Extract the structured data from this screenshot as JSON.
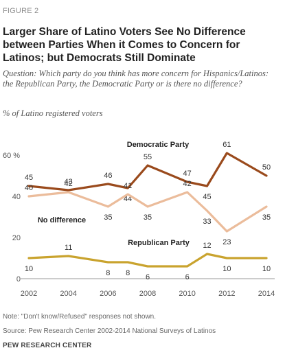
{
  "figure_label": "FIGURE 2",
  "title": "Larger Share of Latino Voters See No Difference between Parties When it Comes to Concern for Latinos; but Democrats Still Dominate",
  "question": "Question: Which party do you think has more concern for Hispanics/Latinos: the Republican Party, the Democratic Party or is there no difference?",
  "units": "% of Latino registered voters",
  "note": "Note: \"Don't know/Refused\" responses not shown.",
  "source": "Source: Pew Research Center 2002-2014 National Surveys of Latinos",
  "brand": "PEW RESEARCH CENTER",
  "chart_data": {
    "type": "line",
    "x": [
      2002,
      2004,
      2006,
      2007,
      2008,
      2010,
      2011,
      2012,
      2014
    ],
    "xticks": [
      "2002",
      "2004",
      "2006",
      "2008",
      "2010",
      "2012",
      "2014"
    ],
    "yticks": [
      "0",
      "20",
      "40",
      "60 %"
    ],
    "ylim": [
      0,
      60
    ],
    "xlim": [
      2002,
      2014
    ],
    "grid": false,
    "series": [
      {
        "name": "Democratic Party",
        "color": "#9a4a1c",
        "values": [
          45,
          43,
          46,
          44,
          55,
          47,
          45,
          61,
          50
        ],
        "labels": [
          "45",
          "43",
          "46",
          "44",
          "55",
          "47",
          "45",
          "61",
          "50"
        ]
      },
      {
        "name": "No difference",
        "color": "#ebbc9b",
        "values": [
          40,
          42,
          35,
          41,
          35,
          42,
          33,
          23,
          35
        ],
        "labels": [
          "40",
          "42",
          "35",
          "41",
          "35",
          "42",
          "33",
          "23",
          "35"
        ]
      },
      {
        "name": "Republican Party",
        "color": "#c9a32e",
        "values": [
          10,
          11,
          8,
          8,
          6,
          6,
          12,
          10,
          10
        ],
        "labels": [
          "10",
          "11",
          "8",
          "8",
          "6",
          "6",
          "12",
          "10",
          "10"
        ]
      }
    ]
  }
}
